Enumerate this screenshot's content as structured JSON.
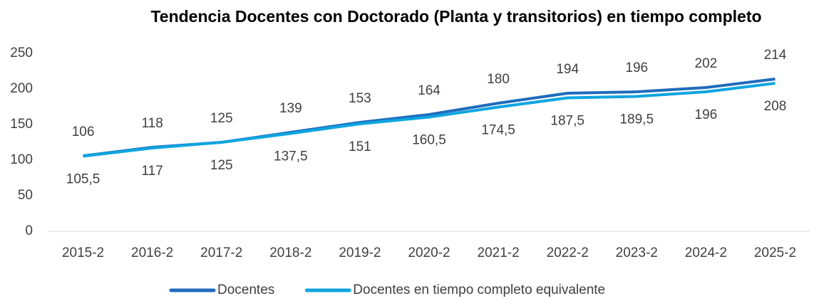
{
  "chart_data": {
    "type": "line",
    "title": "Tendencia Docentes con Doctorado (Planta y transitorios) en tiempo completo",
    "categories": [
      "2015-2",
      "2016-2",
      "2017-2",
      "2018-2",
      "2019-2",
      "2020-2",
      "2021-2",
      "2022-2",
      "2023-2",
      "2024-2",
      "2025-2"
    ],
    "series": [
      {
        "name": "Docentes",
        "color": "#1f6cbc",
        "values": [
          106,
          118,
          125,
          139,
          153,
          164,
          180,
          194,
          196,
          202,
          214
        ]
      },
      {
        "name": "Docentes en tiempo completo equivalente",
        "color": "#0ea5e0",
        "values": [
          105.5,
          117,
          125,
          137.5,
          151,
          160.5,
          174.5,
          187.5,
          189.5,
          196,
          208
        ],
        "value_labels": [
          "105,5",
          "117",
          "125",
          "137,5",
          "151",
          "160,5",
          "174,5",
          "187,5",
          "189,5",
          "196",
          "208"
        ]
      }
    ],
    "ylim": [
      0,
      250
    ],
    "yticks": [
      0,
      50,
      100,
      150,
      200,
      250
    ],
    "grid": false,
    "legend": "bottom"
  }
}
